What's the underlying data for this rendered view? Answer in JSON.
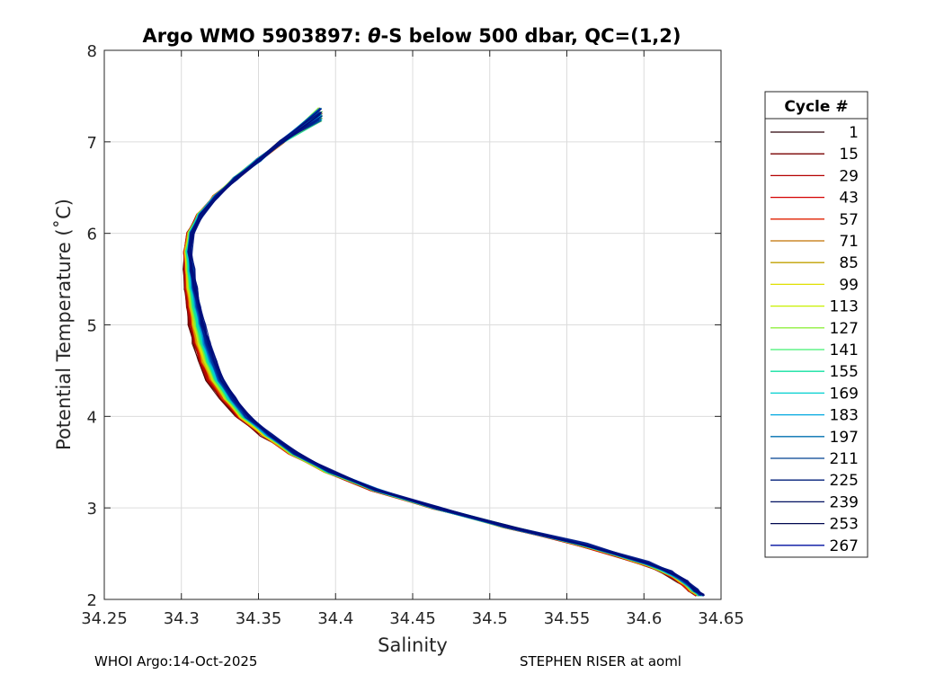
{
  "chart_data": {
    "type": "line",
    "title_prefix": "Argo WMO 5903897: ",
    "title_theta": "θ",
    "title_suffix": "-S below 500 dbar,  QC=(1,2)",
    "xlabel": "Salinity",
    "ylabel": "Potential Temperature (˚C)",
    "xlim": [
      34.25,
      34.65
    ],
    "ylim": [
      2,
      8
    ],
    "x_ticks": [
      "34.25",
      "34.3",
      "34.35",
      "34.4",
      "34.45",
      "34.5",
      "34.55",
      "34.6",
      "34.65"
    ],
    "y_ticks": [
      "2",
      "3",
      "4",
      "5",
      "6",
      "7",
      "8"
    ],
    "grid": true,
    "legend": {
      "title": "Cycle #",
      "position": "right",
      "entries": [
        {
          "label": "1",
          "color": "#2a0008"
        },
        {
          "label": "15",
          "color": "#7a0000"
        },
        {
          "label": "29",
          "color": "#b30000"
        },
        {
          "label": "43",
          "color": "#d40000"
        },
        {
          "label": "57",
          "color": "#e02000"
        },
        {
          "label": "71",
          "color": "#c07000"
        },
        {
          "label": "85",
          "color": "#c0a000"
        },
        {
          "label": "99",
          "color": "#e0e000"
        },
        {
          "label": "113",
          "color": "#c8f000"
        },
        {
          "label": "127",
          "color": "#90f040"
        },
        {
          "label": "141",
          "color": "#40f070"
        },
        {
          "label": "155",
          "color": "#10e0a0"
        },
        {
          "label": "169",
          "color": "#00d0d0"
        },
        {
          "label": "183",
          "color": "#00a8e0"
        },
        {
          "label": "197",
          "color": "#0070b0"
        },
        {
          "label": "211",
          "color": "#004090"
        },
        {
          "label": "225",
          "color": "#001f7a"
        },
        {
          "label": "239",
          "color": "#001060"
        },
        {
          "label": "253",
          "color": "#000850"
        },
        {
          "label": "267",
          "color": "#0010a0"
        }
      ]
    },
    "series_profile": {
      "theta": [
        7.3,
        7.0,
        6.8,
        6.6,
        6.4,
        6.2,
        6.0,
        5.8,
        5.6,
        5.4,
        5.2,
        5.0,
        4.8,
        4.6,
        4.4,
        4.2,
        4.0,
        3.8,
        3.6,
        3.4,
        3.2,
        3.0,
        2.8,
        2.6,
        2.4,
        2.3,
        2.2,
        2.1,
        2.05
      ],
      "salinity": [
        34.39,
        34.365,
        34.35,
        34.335,
        34.322,
        34.312,
        34.306,
        34.304,
        34.305,
        34.306,
        34.308,
        34.31,
        34.313,
        34.317,
        34.322,
        34.33,
        34.34,
        34.355,
        34.372,
        34.395,
        34.425,
        34.465,
        34.51,
        34.56,
        34.6,
        34.615,
        34.625,
        34.632,
        34.636
      ]
    },
    "cycle_count": 267
  },
  "footer": {
    "left": "WHOI Argo:14-Oct-2025",
    "right": "STEPHEN RISER at aoml"
  }
}
